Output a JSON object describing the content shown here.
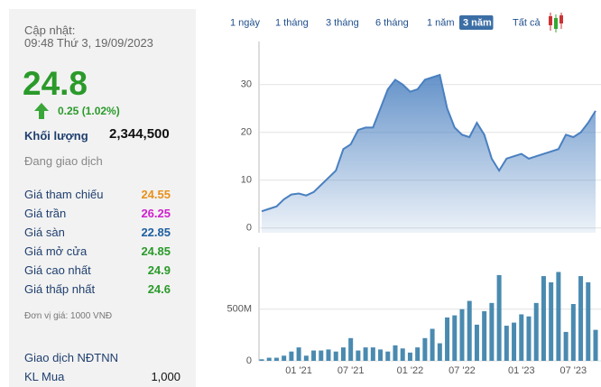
{
  "panel": {
    "updated_label": "Cập nhật:",
    "updated_time": "09:48 Thứ 3, 19/09/2023",
    "price": "24.8",
    "change": "0.25 (1.02%)",
    "volume_label": "Khối lượng",
    "volume": "2,344,500",
    "status": "Đang giao dịch",
    "stats": [
      {
        "label": "Giá tham chiếu",
        "value": "24.55",
        "color": "#e8901a"
      },
      {
        "label": "Giá trần",
        "value": "26.25",
        "color": "#d11fcf"
      },
      {
        "label": "Giá sàn",
        "value": "22.85",
        "color": "#1f5fa0"
      },
      {
        "label": "Giá mở cửa",
        "value": "24.85",
        "color": "#2a9a2a"
      },
      {
        "label": "Giá cao nhất",
        "value": "24.9",
        "color": "#2a9a2a"
      },
      {
        "label": "Giá thấp nhất",
        "value": "24.6",
        "color": "#2a9a2a"
      }
    ],
    "unit_note": "Đơn vị giá: 1000 VNĐ",
    "foreign_title": "Giao dịch NĐTNN",
    "foreign": [
      {
        "label": "KL Mua",
        "value": "1,000"
      }
    ]
  },
  "tabs": {
    "items": [
      "1 ngày",
      "1 tháng",
      "3 tháng",
      "6 tháng",
      "1 năm",
      "3 năm",
      "Tất cả"
    ],
    "active": 5
  },
  "chart_data": [
    {
      "type": "area",
      "color": "#4a80c0",
      "grid": true,
      "categories": [
        null,
        null,
        null,
        null,
        null,
        "01 '21",
        null,
        null,
        null,
        null,
        null,
        null,
        "07 '21",
        null,
        null,
        null,
        null,
        null,
        null,
        null,
        "01 '22",
        null,
        null,
        null,
        null,
        null,
        null,
        "07 '22",
        null,
        null,
        null,
        null,
        null,
        null,
        null,
        "01 '23",
        null,
        null,
        null,
        null,
        null,
        null,
        "07 '23",
        null,
        null,
        null
      ],
      "values": [
        3.5,
        4,
        4.5,
        6,
        7,
        7.2,
        6.8,
        7.5,
        9,
        10.5,
        12,
        16.5,
        17.5,
        20.5,
        21,
        21,
        25,
        29,
        31,
        30,
        28.5,
        29,
        31,
        31.5,
        32,
        25,
        21,
        19.5,
        19,
        22,
        19.5,
        14.5,
        12,
        14.5,
        15,
        15.5,
        14.5,
        15,
        15.5,
        16,
        16.5,
        19.5,
        19,
        20,
        22,
        24.5
      ],
      "ylim": [
        -1,
        39
      ],
      "yticks": [
        0,
        10,
        20,
        30
      ]
    },
    {
      "type": "bar",
      "color": "#4a8ab0",
      "grid": true,
      "categories": [
        null,
        null,
        null,
        null,
        null,
        "01 '21",
        null,
        null,
        null,
        null,
        null,
        null,
        "07 '21",
        null,
        null,
        null,
        null,
        null,
        null,
        null,
        "01 '22",
        null,
        null,
        null,
        null,
        null,
        null,
        "07 '22",
        null,
        null,
        null,
        null,
        null,
        null,
        null,
        "01 '23",
        null,
        null,
        null,
        null,
        null,
        null,
        "07 '23",
        null,
        null,
        null
      ],
      "values": [
        15,
        30,
        30,
        50,
        90,
        130,
        50,
        100,
        100,
        110,
        90,
        130,
        220,
        100,
        130,
        130,
        110,
        90,
        150,
        120,
        80,
        130,
        220,
        310,
        170,
        420,
        440,
        500,
        580,
        350,
        480,
        560,
        830,
        340,
        370,
        450,
        430,
        560,
        820,
        760,
        860,
        280,
        550,
        820,
        760,
        300
      ],
      "ylim": [
        0,
        1100
      ],
      "yticks": [
        0,
        {
          "value": 500,
          "label": "500M"
        }
      ]
    }
  ]
}
